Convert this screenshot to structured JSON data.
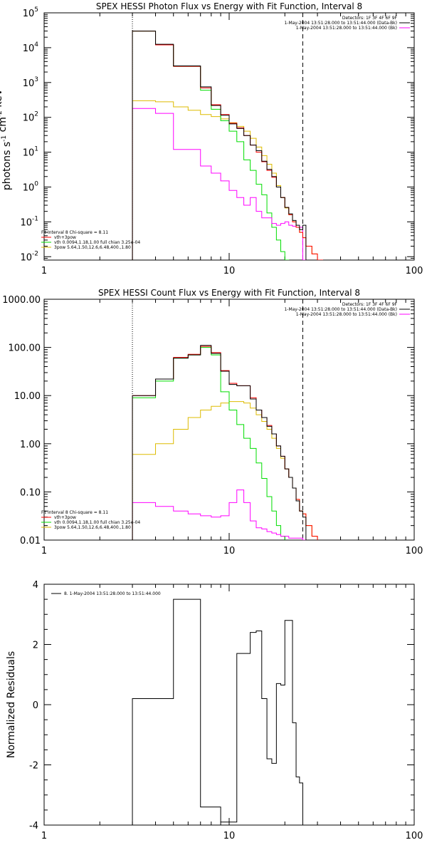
{
  "colors": {
    "data": "#000000",
    "total": "#ff0000",
    "vth": "#00dd00",
    "bpow": "#ddbb00",
    "bk": "#ff00ff",
    "axis": "#000000"
  },
  "chart_data": [
    {
      "type": "line",
      "title": "SPEX HESSI Photon Flux vs Energy with Fit Function, Interval 8",
      "ylabel": "photons s-1 cm-2 keV-1",
      "xlabel": "",
      "xscale": "log",
      "yscale": "log",
      "xlim": [
        1,
        100
      ],
      "ylim": [
        0.008,
        100000
      ],
      "xticks": [
        "1",
        "10",
        "100"
      ],
      "yticks": [
        "10-2",
        "10-1",
        "100",
        "101",
        "102",
        "103",
        "104",
        "105"
      ],
      "vlines": {
        "dotted": 3,
        "dashed": 25
      },
      "legend_top_right": [
        "Detectors: 1F 3F 4F 6F 9F",
        "1-May-2004 13:51:28.000 to 13:51:44.000 (Data-Bk)",
        "1-May-2004 13:51:28.000 to 13:51:44.000 (Bk)"
      ],
      "legend_bottom_left": [
        "Fit Interval 8   Chi-square = 8.11",
        "vth+3pow",
        "vth 0.0094,1.18,1.00  full chian 3.25e-04",
        "3pow 5.64,1.50,12.6,6.48,400.,1.80"
      ],
      "bin_edges": [
        3,
        4,
        5,
        6,
        7,
        8,
        9,
        10,
        11,
        12,
        13,
        14,
        15,
        16,
        17,
        18,
        19,
        20,
        21,
        22,
        23,
        24,
        25,
        26,
        28,
        30,
        32
      ],
      "series": [
        {
          "key": "data",
          "values": [
            30000,
            12500,
            3000,
            3000,
            750,
            220,
            115,
            65,
            48,
            30,
            16,
            11,
            5.5,
            3.2,
            2.0,
            1.0,
            0.5,
            0.26,
            0.17,
            0.11,
            0.08,
            0.06,
            0.08,
            null,
            null,
            null
          ]
        },
        {
          "key": "total",
          "values": [
            30000,
            12000,
            2900,
            2900,
            700,
            230,
            120,
            68,
            50,
            30,
            16,
            10,
            5.3,
            3.0,
            1.9,
            1.0,
            0.5,
            0.26,
            0.16,
            0.1,
            0.07,
            0.05,
            0.035,
            0.02,
            0.012,
            0.008
          ]
        },
        {
          "key": "vth",
          "values": [
            30000,
            12000,
            2900,
            2900,
            600,
            170,
            80,
            40,
            20,
            6,
            3,
            1.2,
            0.6,
            0.18,
            0.07,
            0.03,
            0.014,
            0.008,
            null,
            null,
            null,
            null,
            null,
            null,
            null,
            null
          ]
        },
        {
          "key": "bpow",
          "values": [
            300,
            280,
            200,
            160,
            120,
            105,
            90,
            70,
            55,
            40,
            25,
            14,
            8,
            4.5,
            2.5,
            1.1,
            0.5,
            0.25,
            0.16,
            0.1,
            0.07,
            0.05,
            0.035,
            0.02,
            0.012,
            0.008
          ]
        },
        {
          "key": "bk",
          "values": [
            180,
            130,
            12,
            12,
            4,
            2.5,
            1.5,
            0.8,
            0.5,
            0.3,
            0.5,
            0.2,
            0.13,
            0.13,
            0.09,
            0.08,
            0.09,
            0.1,
            0.08,
            0.075,
            0.07,
            0.07,
            0.008,
            null,
            null,
            null
          ]
        }
      ]
    },
    {
      "type": "line",
      "title": "SPEX HESSI Count Flux vs Energy with Fit Function, Interval 8",
      "ylabel": "",
      "xlabel": "",
      "xscale": "log",
      "yscale": "log",
      "xlim": [
        1,
        100
      ],
      "ylim": [
        0.01,
        1000
      ],
      "xticks": [
        "1",
        "10",
        "100"
      ],
      "yticks": [
        "0.01",
        "0.10",
        "1.00",
        "10.00",
        "100.00",
        "1000.00"
      ],
      "vlines": {
        "dotted": 3,
        "dashed": 25
      },
      "legend_top_right": [
        "Detectors: 1F 3F 4F 6F 9F",
        "1-May-2004 13:51:28.000 to 13:51:44.000 (Data-Bk)",
        "1-May-2004 13:51:28.000 to 13:51:44.000 (Bk)"
      ],
      "legend_bottom_left": [
        "Fit Interval 8   Chi-square = 8.11",
        "vth+3pow",
        "vth 0.0094,1.18,1.00  full chian 3.25e-04",
        "3pow 5.64,1.50,12.6,6.48,400.,1.80"
      ],
      "bin_edges": [
        3,
        4,
        5,
        6,
        7,
        8,
        9,
        10,
        11,
        12,
        13,
        14,
        15,
        16,
        17,
        18,
        19,
        20,
        21,
        22,
        23,
        24,
        25,
        26,
        28,
        30
      ],
      "series": [
        {
          "key": "data",
          "values": [
            10,
            22,
            60,
            70,
            110,
            75,
            32,
            17,
            16,
            16,
            8.5,
            5,
            3.5,
            2.3,
            1.6,
            0.9,
            0.55,
            0.3,
            0.2,
            0.12,
            0.065,
            0.04,
            0.03,
            null,
            null
          ]
        },
        {
          "key": "total",
          "values": [
            10,
            22,
            62,
            72,
            105,
            78,
            33,
            18,
            16,
            16,
            9,
            5,
            3.5,
            2.4,
            1.6,
            0.9,
            0.55,
            0.3,
            0.2,
            0.12,
            0.07,
            0.04,
            0.035,
            0.02,
            0.012
          ]
        },
        {
          "key": "vth",
          "values": [
            9,
            20,
            60,
            70,
            100,
            70,
            12,
            5,
            2.5,
            1.3,
            0.8,
            0.4,
            0.19,
            0.08,
            0.04,
            0.02,
            0.012,
            null,
            null,
            null,
            null,
            null,
            null,
            null,
            null
          ]
        },
        {
          "key": "bpow",
          "values": [
            0.6,
            1.0,
            2.0,
            3.5,
            5,
            6,
            7,
            7.5,
            7.5,
            7,
            5.5,
            4,
            2.9,
            2.0,
            1.3,
            0.8,
            0.5,
            0.3,
            0.2,
            0.12,
            0.07,
            0.04,
            0.035,
            0.02,
            0.012
          ]
        },
        {
          "key": "bk",
          "values": [
            0.06,
            0.05,
            0.04,
            0.035,
            0.032,
            0.03,
            0.032,
            0.06,
            0.11,
            0.06,
            0.025,
            0.018,
            0.017,
            0.015,
            0.014,
            0.013,
            0.012,
            0.012,
            0.011,
            0.011,
            0.011,
            0.011,
            0.01,
            null,
            null
          ]
        }
      ]
    },
    {
      "type": "line",
      "title": "",
      "ylabel": "Normalized Residuals",
      "xlabel": "",
      "xscale": "log",
      "yscale": "linear",
      "xlim": [
        1,
        100
      ],
      "ylim": [
        -4,
        4
      ],
      "xticks": [
        "1",
        "10",
        "100"
      ],
      "yticks": [
        "-4",
        "-2",
        "0",
        "2",
        "4"
      ],
      "legend": "8. 1-May-2004 13:51:28.000 to 13:51:44.000",
      "bin_edges": [
        3,
        4,
        5,
        6,
        7,
        8,
        9,
        10,
        11,
        12,
        13,
        14,
        15,
        16,
        17,
        18,
        19,
        20,
        21,
        22,
        23,
        24,
        25
      ],
      "series": [
        {
          "key": "data",
          "values": [
            0.2,
            0.2,
            3.5,
            3.5,
            -3.4,
            -3.4,
            -3.9,
            -3.9,
            1.7,
            1.7,
            2.4,
            2.45,
            0.2,
            -1.8,
            -1.95,
            0.7,
            0.65,
            2.8,
            2.8,
            -0.6,
            -2.4,
            -2.6,
            -4
          ]
        }
      ]
    }
  ]
}
